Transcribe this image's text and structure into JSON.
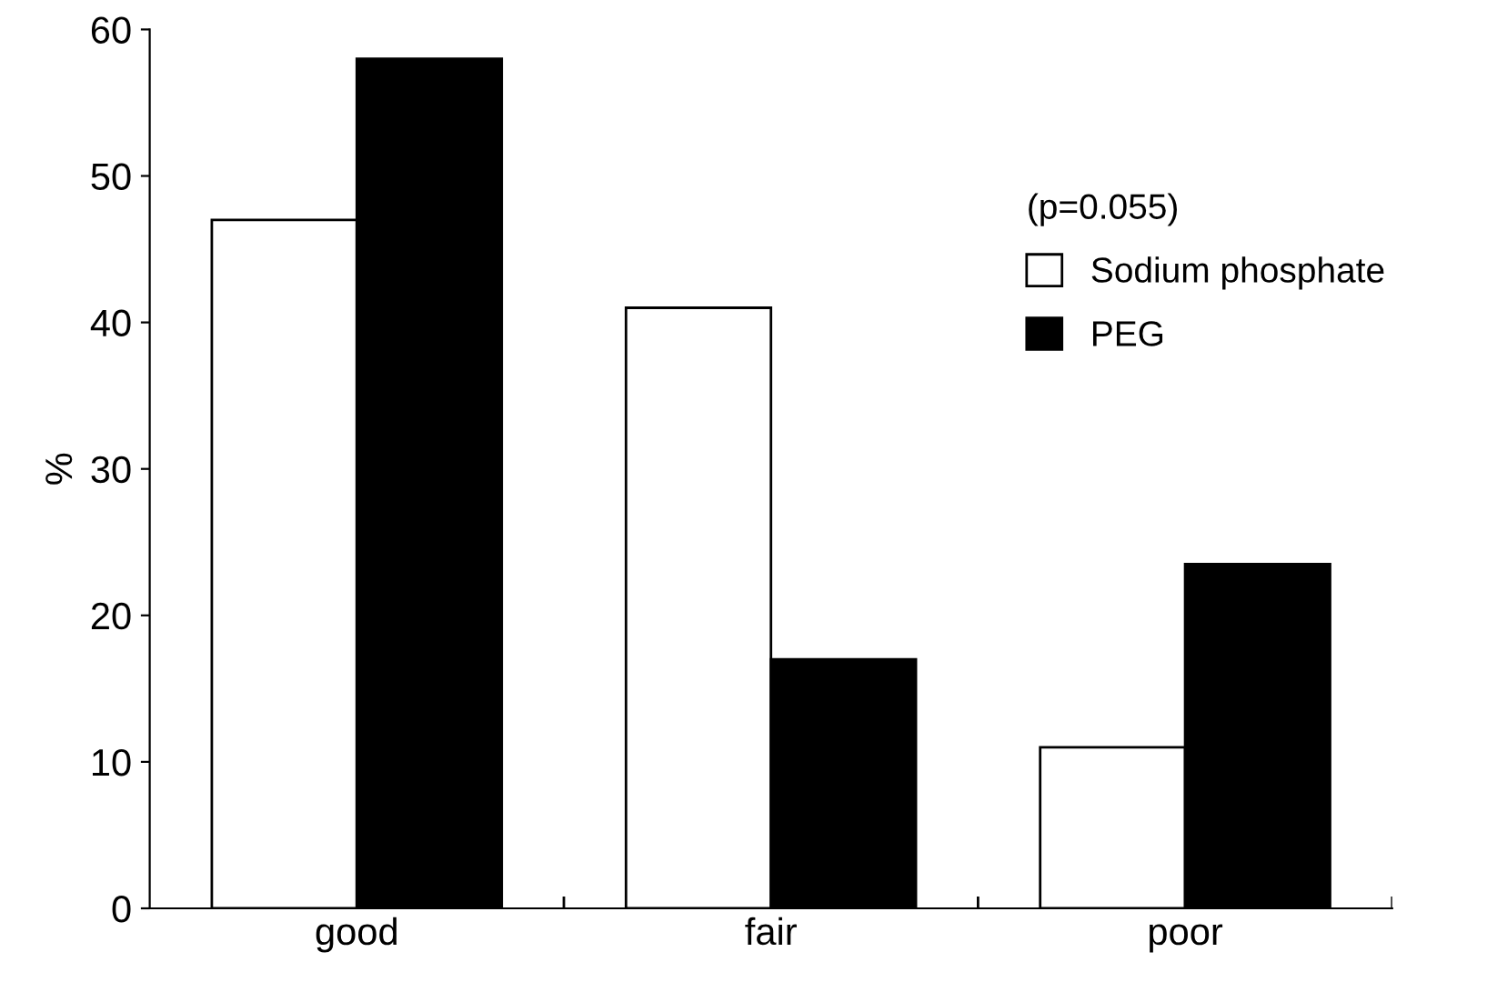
{
  "chart_data": {
    "type": "bar",
    "ylabel": "%",
    "categories": [
      "good",
      "fair",
      "poor"
    ],
    "series": [
      {
        "name": "Sodium phosphate",
        "color": "#ffffff",
        "values": [
          47,
          41,
          11
        ]
      },
      {
        "name": "PEG",
        "color": "#000000",
        "values": [
          58,
          17,
          23.5
        ]
      }
    ],
    "ylim": [
      0,
      60
    ],
    "yticks": [
      0,
      10,
      20,
      30,
      40,
      50,
      60
    ],
    "grid": false,
    "legend": "top right",
    "legend_title": "(p=0.055)"
  }
}
